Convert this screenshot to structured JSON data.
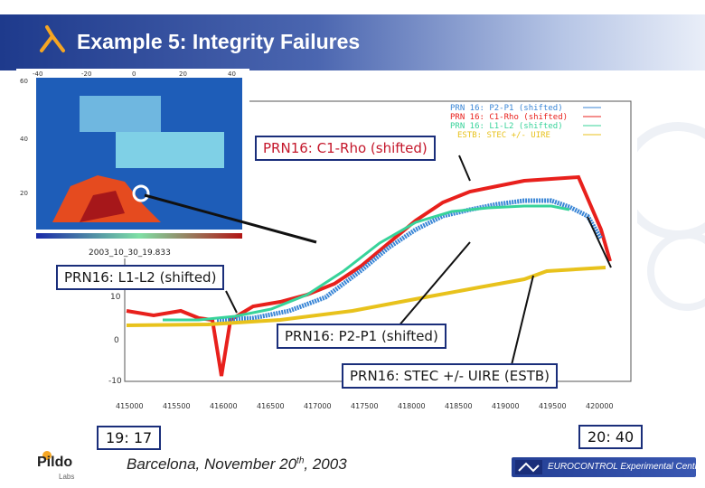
{
  "header": {
    "title": "Example 5: Integrity Failures",
    "brand_color": "#1e3a8c"
  },
  "map": {
    "caption": "2003_10_30_19.833",
    "lat_ticks": [
      "60",
      "40",
      "20"
    ],
    "lon_ticks": [
      "-40",
      "-20",
      "0",
      "20",
      "40"
    ]
  },
  "plot": {
    "legend": [
      {
        "label": "PRN 16: P2-P1 (shifted)",
        "color": "#3a86d6",
        "marker": "+"
      },
      {
        "label": "PRN 16: C1-Rho (shifted)",
        "color": "#e8201c",
        "marker": "+"
      },
      {
        "label": "PRN 16: L1-L2 (shifted)",
        "color": "#37d39a",
        "marker": "+"
      },
      {
        "label": "ESTB: STEC +/- UIRE",
        "color": "#e8c21c",
        "marker": "+"
      }
    ],
    "y_ticks": [
      "10",
      "0",
      "-10"
    ],
    "x_ticks": [
      "415000",
      "415500",
      "416000",
      "416500",
      "417000",
      "417500",
      "418000",
      "418500",
      "419000",
      "419500",
      "420000"
    ]
  },
  "callouts": {
    "c1_rho": "PRN16: C1-Rho (shifted)",
    "l1_l2": "PRN16: L1-L2 (shifted)",
    "p2_p1": "PRN16: P2-P1 (shifted)",
    "stec": "PRN16: STEC +/- UIRE (ESTB)"
  },
  "times": {
    "start": "19: 17",
    "end": "20: 40"
  },
  "footer": {
    "location_prefix": "Barcelona, November 20",
    "location_sup": "th",
    "location_suffix": ", 2003",
    "pildo_name": "Pildo",
    "pildo_sub": "Labs",
    "eurocontrol": "EUROCONTROL Experimental Centre"
  }
}
